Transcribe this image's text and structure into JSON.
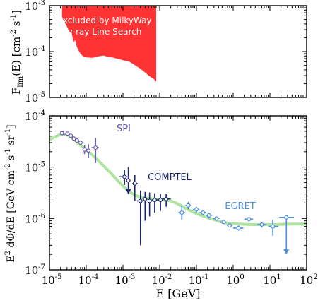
{
  "chart_data": [
    {
      "type": "area",
      "ylabel_main": "F",
      "ylabel_sub": "lim",
      "ylabel_rest": "(E) [cm",
      "ylabel_exp": "-2",
      "ylabel_s": " s",
      "ylabel_s_exp": "-1",
      "ylabel_close": "]",
      "y_scale": "log",
      "x_scale": "log",
      "xlim": [
        1e-05,
        100
      ],
      "ylim": [
        1e-05,
        0.001
      ],
      "ytick_labels": [
        {
          "base": "10",
          "exp": "-5"
        },
        {
          "base": "10",
          "exp": "-4"
        },
        {
          "base": "10",
          "exp": "-3"
        }
      ],
      "annotation_lines": [
        "Excluded by MilkyWay",
        "γ-ray Line Search"
      ],
      "fill_color": "#ff3333",
      "excluded_region": {
        "x": [
          2.2e-05,
          3e-05,
          3.5e-05,
          4e-05,
          4.5e-05,
          5e-05,
          5.5e-05,
          6e-05,
          7e-05,
          8e-05,
          0.0001,
          0.00015,
          0.0002,
          0.0003,
          0.0004,
          0.0005,
          0.0007,
          0.001,
          0.0015,
          0.002,
          0.003,
          0.004,
          0.005,
          0.006,
          0.007,
          0.008
        ],
        "y_lower": [
          0.00055,
          0.00035,
          0.00026,
          0.00026,
          0.00016,
          0.00018,
          0.00013,
          0.00011,
          9e-05,
          8e-05,
          7.5e-05,
          7.3e-05,
          7.8e-05,
          8.2e-05,
          7.6e-05,
          7.5e-05,
          7e-05,
          6.5e-05,
          6e-05,
          5.2e-05,
          4.2e-05,
          3.5e-05,
          3e-05,
          2.7e-05,
          2.5e-05,
          2.2e-05
        ]
      }
    },
    {
      "type": "scatter",
      "ylabel_prefix": "E",
      "ylabel_exp": "2",
      "ylabel_rest": " dΦ/dE [GeV cm",
      "ylabel_cm_exp": "-2",
      "ylabel_s": " s",
      "ylabel_s_exp": "-1",
      "ylabel_sr": " sr",
      "ylabel_sr_exp": "-1",
      "ylabel_close": "]",
      "xlabel": "E [GeV]",
      "x_scale": "log",
      "y_scale": "log",
      "xlim": [
        1e-05,
        100
      ],
      "ylim": [
        1e-07,
        0.0001
      ],
      "xtick_labels": [
        {
          "base": "10",
          "exp": "-5"
        },
        {
          "base": "10",
          "exp": "-4"
        },
        {
          "base": "10",
          "exp": "-3"
        },
        {
          "base": "10",
          "exp": "-2"
        },
        {
          "base": "10",
          "exp": "-1"
        },
        {
          "base": "10",
          "exp": "0"
        },
        {
          "base": "10",
          "exp": "1"
        },
        {
          "base": "10",
          "exp": "2"
        }
      ],
      "ytick_labels": [
        {
          "base": "10",
          "exp": "-7"
        },
        {
          "base": "10",
          "exp": "-6"
        },
        {
          "base": "10",
          "exp": "-5"
        },
        {
          "base": "10",
          "exp": "-4"
        }
      ],
      "model_curve": {
        "color": "#aee3a0",
        "x": [
          1e-05,
          1.5e-05,
          2e-05,
          2.5e-05,
          3e-05,
          4e-05,
          5e-05,
          7e-05,
          0.0001,
          0.00015,
          0.0002,
          0.0003,
          0.0005,
          0.0007,
          0.001,
          0.0015,
          0.002,
          0.003,
          0.005,
          0.007,
          0.01,
          0.02,
          0.03,
          0.05,
          0.07,
          0.1,
          0.2,
          0.3,
          0.5,
          0.7,
          1,
          2,
          3,
          5,
          10,
          20,
          50,
          100
        ],
        "y": [
          3.4e-05,
          4e-05,
          4.3e-05,
          4.4e-05,
          4.3e-05,
          3.8e-05,
          3.3e-05,
          2.7e-05,
          2.2e-05,
          1.7e-05,
          1.4e-05,
          1.05e-05,
          7.3e-06,
          5.6e-06,
          4.3e-06,
          3.3e-06,
          2.9e-06,
          2.6e-06,
          2.45e-06,
          2.4e-06,
          2.35e-06,
          2.2e-06,
          1.95e-06,
          1.6e-06,
          1.4e-06,
          1.25e-06,
          1.05e-06,
          9.5e-07,
          8.5e-07,
          8.1e-07,
          7.9e-07,
          7.7e-07,
          7.6e-07,
          7.6e-07,
          7.6e-07,
          7.7e-07,
          7.8e-07,
          7.8e-07
        ]
      },
      "series": [
        {
          "name": "SPI",
          "color": "#6a5fb8",
          "points": [
            {
              "x": 2.2e-05,
              "y": 4.6e-05
            },
            {
              "x": 2.6e-05,
              "y": 4.7e-05
            },
            {
              "x": 3.1e-05,
              "y": 4.5e-05
            },
            {
              "x": 3.8e-05,
              "y": 4.1e-05
            },
            {
              "x": 4.6e-05,
              "y": 3.6e-05
            },
            {
              "x": 5.6e-05,
              "y": 3.3e-05
            },
            {
              "x": 7e-05,
              "y": 3e-05
            },
            {
              "x": 9e-05,
              "y": 2.2e-05,
              "ylo": 1.8e-05,
              "yhi": 2.7e-05,
              "xlo": 8e-05,
              "xhi": 0.0001
            },
            {
              "x": 0.000115,
              "y": 2.1e-05,
              "ylo": 1.5e-05,
              "yhi": 2.8e-05,
              "xlo": 0.0001,
              "xhi": 0.00013
            },
            {
              "x": 0.00018,
              "y": 2.4e-05,
              "ylo": 1.2e-05,
              "yhi": 3.7e-05,
              "xlo": 0.00014,
              "xhi": 0.00022
            }
          ]
        },
        {
          "name": "COMPTEL",
          "color": "#1c2670",
          "points": [
            {
              "x": 0.0011,
              "y": 6.5e-06,
              "ylo": 4.5e-06,
              "yhi": 9e-06,
              "xlo": 0.0008,
              "xhi": 0.0013
            },
            {
              "x": 0.0014,
              "y": 5.5e-06,
              "ylo": 3e-06,
              "yhi": 1e-05,
              "xlo": 0.0012,
              "xhi": 0.0016,
              "upper_limit": true
            },
            {
              "x": 0.0021,
              "y": 4.8e-06,
              "ylo": 2.2e-06,
              "yhi": 7e-06,
              "xlo": 0.0018,
              "xhi": 0.0025
            },
            {
              "x": 0.003,
              "y": 2.2e-06,
              "ylo": 3e-07,
              "yhi": 3.5e-06,
              "xlo": 0.0024,
              "xhi": 0.0034
            },
            {
              "x": 0.004,
              "y": 2.4e-06,
              "ylo": 9e-07,
              "yhi": 3.3e-06,
              "xlo": 0.0034,
              "xhi": 0.0046
            },
            {
              "x": 0.0053,
              "y": 2.2e-06,
              "ylo": 1.1e-06,
              "yhi": 3.2e-06,
              "xlo": 0.0046,
              "xhi": 0.006
            },
            {
              "x": 0.0073,
              "y": 2.3e-06,
              "ylo": 1.3e-06,
              "yhi": 3.1e-06,
              "xlo": 0.006,
              "xhi": 0.0085
            },
            {
              "x": 0.0105,
              "y": 2.3e-06,
              "ylo": 1.4e-06,
              "yhi": 3e-06,
              "xlo": 0.0085,
              "xhi": 0.0125
            },
            {
              "x": 0.015,
              "y": 2.4e-06,
              "ylo": 1.7e-06,
              "yhi": 3e-06,
              "xlo": 0.0125,
              "xhi": 0.02
            }
          ]
        },
        {
          "name": "EGRET",
          "color": "#4a8fe0",
          "points": [
            {
              "x": 0.04,
              "y": 1.3e-06,
              "ylo": 9.5e-07,
              "yhi": 1.8e-06,
              "xlo": 0.032,
              "xhi": 0.05
            },
            {
              "x": 0.06,
              "y": 1.8e-06,
              "ylo": 1.5e-06,
              "yhi": 2.1e-06,
              "xlo": 0.05,
              "xhi": 0.07
            },
            {
              "x": 0.1,
              "y": 1.5e-06,
              "ylo": 1.3e-06,
              "yhi": 1.7e-06,
              "xlo": 0.08,
              "xhi": 0.12
            },
            {
              "x": 0.15,
              "y": 1.3e-06,
              "ylo": 1.15e-06,
              "yhi": 1.45e-06,
              "xlo": 0.12,
              "xhi": 0.18
            },
            {
              "x": 0.22,
              "y": 1.15e-06,
              "ylo": 1e-06,
              "yhi": 1.3e-06,
              "xlo": 0.18,
              "xhi": 0.27
            },
            {
              "x": 0.35,
              "y": 1e-06,
              "ylo": 9e-07,
              "yhi": 1.1e-06,
              "xlo": 0.28,
              "xhi": 0.42
            },
            {
              "x": 0.55,
              "y": 8.5e-07,
              "ylo": 7.8e-07,
              "yhi": 9.3e-07,
              "xlo": 0.45,
              "xhi": 0.65
            },
            {
              "x": 0.8,
              "y": 7.3e-07,
              "ylo": 6.7e-07,
              "yhi": 8e-07,
              "xlo": 0.68,
              "xhi": 0.95
            },
            {
              "x": 1.4,
              "y": 6.5e-07,
              "ylo": 5.8e-07,
              "yhi": 7.3e-07,
              "xlo": 1.0,
              "xhi": 1.9
            },
            {
              "x": 2.7,
              "y": 9.7e-07,
              "ylo": 8.8e-07,
              "yhi": 1.07e-06,
              "xlo": 2.0,
              "xhi": 3.5
            },
            {
              "x": 6,
              "y": 7.6e-07,
              "ylo": 6.6e-07,
              "yhi": 8.6e-07,
              "xlo": 4.5,
              "xhi": 8
            },
            {
              "x": 12,
              "y": 7e-07,
              "ylo": 4.6e-07,
              "yhi": 9.5e-07,
              "xlo": 9,
              "xhi": 17
            },
            {
              "x": 28,
              "y": 1.05e-06,
              "ylo": 2e-07,
              "yhi": 1.1e-06,
              "xlo": 18,
              "xhi": 45,
              "upper_limit": true
            }
          ]
        }
      ]
    }
  ]
}
